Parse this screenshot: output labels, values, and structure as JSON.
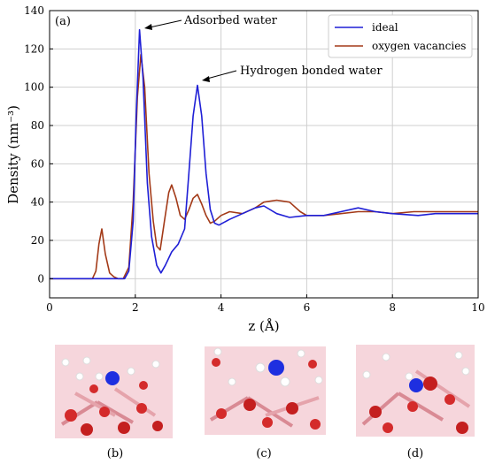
{
  "chart_data": {
    "type": "line",
    "panel_label": "(a)",
    "xlabel": "z (Å)",
    "ylabel": "Density (nm⁻³)",
    "xlim": [
      0,
      10
    ],
    "ylim": [
      -10,
      140
    ],
    "xticks": [
      0,
      2,
      4,
      6,
      8,
      10
    ],
    "yticks": [
      0,
      20,
      40,
      60,
      80,
      100,
      120,
      140
    ],
    "grid": true,
    "legend_position": "top-right",
    "series": [
      {
        "name": "ideal",
        "color": "#1f1fd6",
        "points": [
          [
            0,
            0
          ],
          [
            1.0,
            0
          ],
          [
            1.5,
            0
          ],
          [
            1.75,
            0
          ],
          [
            1.85,
            4
          ],
          [
            1.95,
            30
          ],
          [
            2.02,
            85
          ],
          [
            2.1,
            130
          ],
          [
            2.18,
            105
          ],
          [
            2.28,
            50
          ],
          [
            2.38,
            22
          ],
          [
            2.5,
            7
          ],
          [
            2.6,
            3
          ],
          [
            2.7,
            7
          ],
          [
            2.85,
            14
          ],
          [
            3.0,
            18
          ],
          [
            3.15,
            26
          ],
          [
            3.25,
            55
          ],
          [
            3.35,
            85
          ],
          [
            3.45,
            101
          ],
          [
            3.55,
            85
          ],
          [
            3.65,
            55
          ],
          [
            3.75,
            36
          ],
          [
            3.85,
            29
          ],
          [
            3.95,
            28
          ],
          [
            4.2,
            31
          ],
          [
            4.5,
            34
          ],
          [
            4.8,
            37
          ],
          [
            5.0,
            38
          ],
          [
            5.3,
            34
          ],
          [
            5.6,
            32
          ],
          [
            6.0,
            33
          ],
          [
            6.4,
            33
          ],
          [
            6.8,
            35
          ],
          [
            7.2,
            37
          ],
          [
            7.6,
            35
          ],
          [
            8.0,
            34
          ],
          [
            8.6,
            33
          ],
          [
            9.0,
            34
          ],
          [
            9.5,
            34
          ],
          [
            10.0,
            34
          ]
        ]
      },
      {
        "name": "oxygen vacancies",
        "color": "#a33a18",
        "points": [
          [
            0,
            0
          ],
          [
            0.9,
            0
          ],
          [
            1.0,
            0
          ],
          [
            1.08,
            4
          ],
          [
            1.15,
            18
          ],
          [
            1.22,
            26
          ],
          [
            1.3,
            13
          ],
          [
            1.4,
            3
          ],
          [
            1.5,
            1
          ],
          [
            1.6,
            0
          ],
          [
            1.72,
            0
          ],
          [
            1.85,
            6
          ],
          [
            1.95,
            40
          ],
          [
            2.05,
            95
          ],
          [
            2.13,
            117
          ],
          [
            2.22,
            100
          ],
          [
            2.32,
            55
          ],
          [
            2.42,
            30
          ],
          [
            2.5,
            17
          ],
          [
            2.58,
            15
          ],
          [
            2.68,
            30
          ],
          [
            2.78,
            45
          ],
          [
            2.85,
            49
          ],
          [
            2.95,
            42
          ],
          [
            3.05,
            33
          ],
          [
            3.15,
            31
          ],
          [
            3.25,
            36
          ],
          [
            3.35,
            42
          ],
          [
            3.45,
            44
          ],
          [
            3.55,
            39
          ],
          [
            3.65,
            33
          ],
          [
            3.75,
            29
          ],
          [
            3.85,
            30
          ],
          [
            4.0,
            33
          ],
          [
            4.2,
            35
          ],
          [
            4.5,
            34
          ],
          [
            4.8,
            37
          ],
          [
            5.0,
            40
          ],
          [
            5.3,
            41
          ],
          [
            5.6,
            40
          ],
          [
            5.85,
            35
          ],
          [
            6.0,
            33
          ],
          [
            6.4,
            33
          ],
          [
            6.8,
            34
          ],
          [
            7.2,
            35
          ],
          [
            7.6,
            35
          ],
          [
            8.0,
            34
          ],
          [
            8.5,
            35
          ],
          [
            9.0,
            35
          ],
          [
            9.5,
            35
          ],
          [
            10.0,
            35
          ]
        ]
      }
    ],
    "annotations": [
      {
        "text": "Adsorbed water",
        "x": 2.1,
        "y": 130
      },
      {
        "text": "Hydrogen bonded water",
        "x": 3.45,
        "y": 101
      }
    ]
  },
  "panels": [
    {
      "label": "(b)"
    },
    {
      "label": "(c)"
    },
    {
      "label": "(d)"
    }
  ]
}
